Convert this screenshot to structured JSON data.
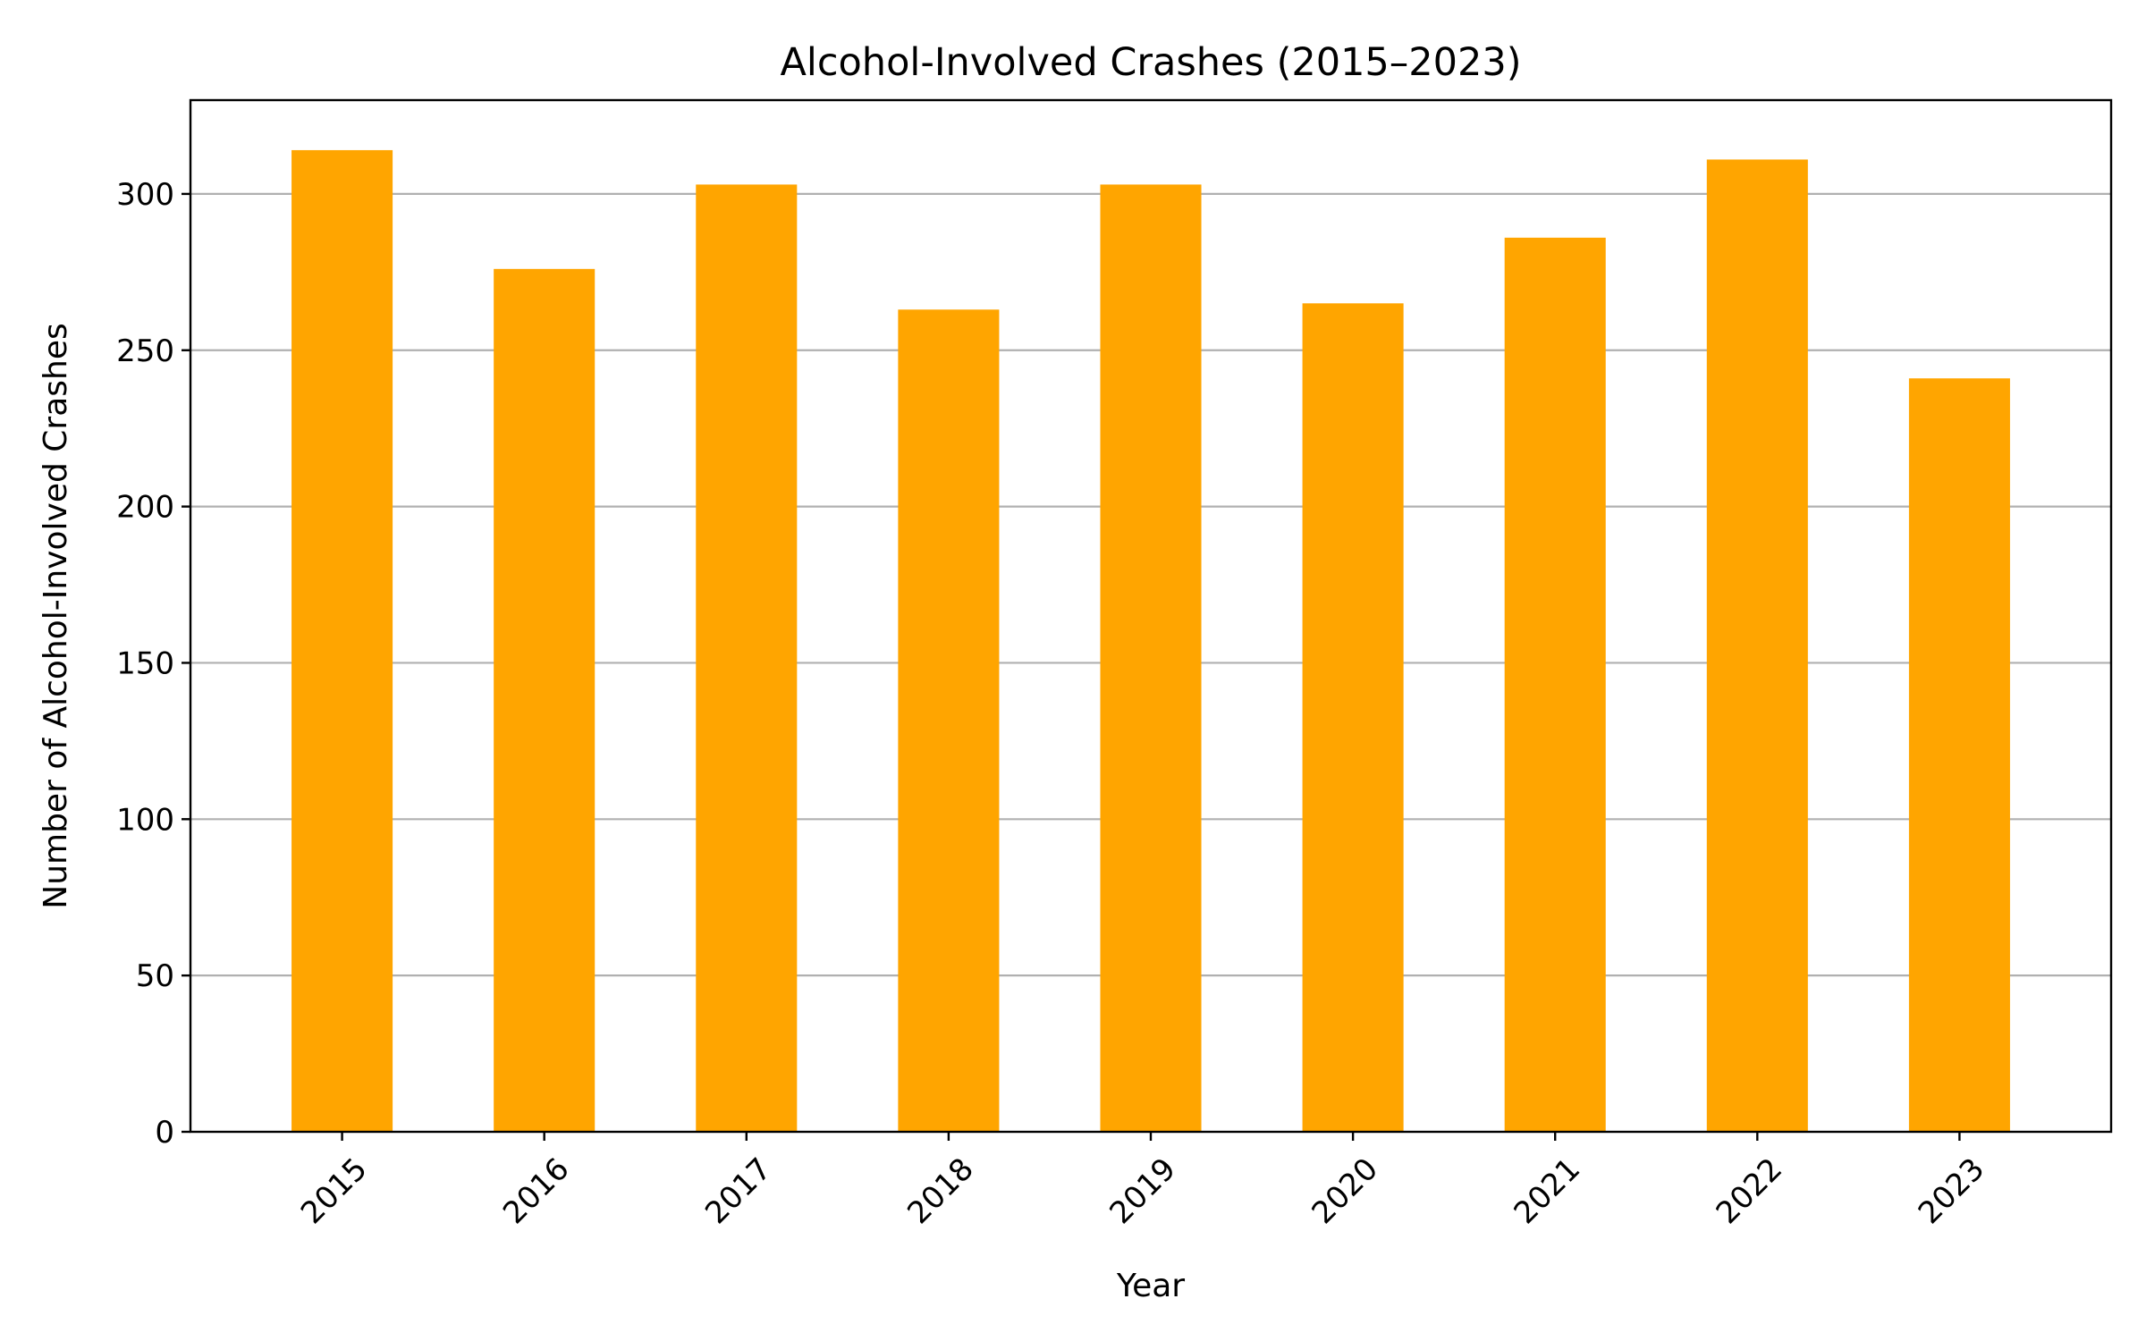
{
  "chart_data": {
    "type": "bar",
    "title": "Alcohol-Involved Crashes (2015–2023)",
    "xlabel": "Year",
    "ylabel": "Number of Alcohol-Involved Crashes",
    "categories": [
      "2015",
      "2016",
      "2017",
      "2018",
      "2019",
      "2020",
      "2021",
      "2022",
      "2023"
    ],
    "values": [
      314,
      276,
      303,
      263,
      303,
      265,
      286,
      311,
      241
    ],
    "ylim": [
      0,
      330
    ],
    "yticks": [
      0,
      50,
      100,
      150,
      200,
      250,
      300
    ],
    "grid": "y-axis only",
    "legend": "none",
    "bar_color": "#FFA500"
  }
}
